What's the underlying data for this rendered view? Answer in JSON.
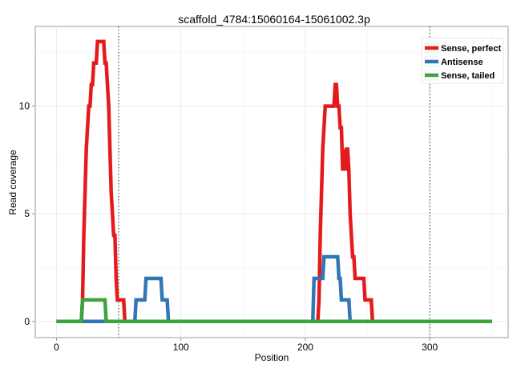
{
  "chart_data": {
    "type": "line",
    "title": "scaffold_4784:15060164-15061002.3p",
    "xlabel": "Position",
    "ylabel": "Read coverage",
    "xlim": [
      -17,
      363
    ],
    "ylim": [
      -0.75,
      13.7
    ],
    "xticks": [
      0,
      100,
      200,
      300
    ],
    "yticks": [
      0,
      5,
      10
    ],
    "grid": true,
    "legend_position": "top-right",
    "vlines": [
      50,
      300
    ],
    "series": [
      {
        "name": "Sense, perfect",
        "color": "#e41a1c",
        "points": [
          [
            0,
            0
          ],
          [
            20,
            0
          ],
          [
            21,
            1
          ],
          [
            22,
            4
          ],
          [
            23,
            6
          ],
          [
            24,
            8
          ],
          [
            25,
            9
          ],
          [
            26,
            10
          ],
          [
            27,
            10
          ],
          [
            28,
            11
          ],
          [
            29,
            11
          ],
          [
            30,
            12
          ],
          [
            31,
            12
          ],
          [
            32,
            12
          ],
          [
            33,
            13
          ],
          [
            35,
            13
          ],
          [
            37,
            13
          ],
          [
            38,
            13
          ],
          [
            39,
            12
          ],
          [
            40,
            12
          ],
          [
            41,
            11
          ],
          [
            42,
            10
          ],
          [
            43,
            8
          ],
          [
            44,
            6
          ],
          [
            45,
            5
          ],
          [
            46,
            4
          ],
          [
            47,
            4
          ],
          [
            48,
            2
          ],
          [
            49,
            1
          ],
          [
            50,
            1
          ],
          [
            51,
            1
          ],
          [
            52,
            1
          ],
          [
            53,
            1
          ],
          [
            54,
            1
          ],
          [
            55,
            0
          ],
          [
            210,
            0
          ],
          [
            211,
            1
          ],
          [
            212,
            4
          ],
          [
            213,
            6
          ],
          [
            214,
            8
          ],
          [
            215,
            9
          ],
          [
            216,
            10
          ],
          [
            217,
            10
          ],
          [
            218,
            10
          ],
          [
            219,
            10
          ],
          [
            220,
            10
          ],
          [
            221,
            10
          ],
          [
            222,
            10
          ],
          [
            223,
            10
          ],
          [
            224,
            11
          ],
          [
            225,
            11
          ],
          [
            226,
            10
          ],
          [
            227,
            10
          ],
          [
            228,
            9
          ],
          [
            229,
            9
          ],
          [
            230,
            7
          ],
          [
            231,
            8
          ],
          [
            232,
            7
          ],
          [
            233,
            8
          ],
          [
            234,
            8
          ],
          [
            235,
            7
          ],
          [
            236,
            5
          ],
          [
            237,
            4
          ],
          [
            238,
            3
          ],
          [
            239,
            3
          ],
          [
            240,
            2
          ],
          [
            241,
            2
          ],
          [
            242,
            2
          ],
          [
            243,
            2
          ],
          [
            244,
            2
          ],
          [
            245,
            2
          ],
          [
            246,
            2
          ],
          [
            247,
            2
          ],
          [
            248,
            1
          ],
          [
            249,
            1
          ],
          [
            250,
            1
          ],
          [
            251,
            1
          ],
          [
            252,
            1
          ],
          [
            253,
            1
          ],
          [
            254,
            0
          ],
          [
            350,
            0
          ]
        ]
      },
      {
        "name": "Antisense",
        "color": "#3176b5",
        "points": [
          [
            0,
            0
          ],
          [
            63,
            0
          ],
          [
            64,
            1
          ],
          [
            65,
            1
          ],
          [
            66,
            1
          ],
          [
            67,
            1
          ],
          [
            68,
            1
          ],
          [
            69,
            1
          ],
          [
            70,
            1
          ],
          [
            71,
            1
          ],
          [
            72,
            2
          ],
          [
            73,
            2
          ],
          [
            74,
            2
          ],
          [
            75,
            2
          ],
          [
            76,
            2
          ],
          [
            77,
            2
          ],
          [
            78,
            2
          ],
          [
            79,
            2
          ],
          [
            80,
            2
          ],
          [
            81,
            2
          ],
          [
            82,
            2
          ],
          [
            83,
            2
          ],
          [
            84,
            2
          ],
          [
            85,
            1
          ],
          [
            86,
            1
          ],
          [
            87,
            1
          ],
          [
            88,
            1
          ],
          [
            89,
            1
          ],
          [
            90,
            0
          ],
          [
            206,
            0
          ],
          [
            207,
            2
          ],
          [
            208,
            2
          ],
          [
            209,
            2
          ],
          [
            210,
            2
          ],
          [
            211,
            2
          ],
          [
            212,
            2
          ],
          [
            213,
            2
          ],
          [
            214,
            2
          ],
          [
            215,
            3
          ],
          [
            216,
            3
          ],
          [
            217,
            3
          ],
          [
            218,
            3
          ],
          [
            219,
            3
          ],
          [
            220,
            3
          ],
          [
            221,
            3
          ],
          [
            222,
            3
          ],
          [
            223,
            3
          ],
          [
            224,
            3
          ],
          [
            225,
            3
          ],
          [
            226,
            3
          ],
          [
            227,
            2
          ],
          [
            228,
            2
          ],
          [
            229,
            1
          ],
          [
            230,
            1
          ],
          [
            231,
            1
          ],
          [
            232,
            1
          ],
          [
            233,
            1
          ],
          [
            234,
            1
          ],
          [
            235,
            1
          ],
          [
            236,
            0
          ],
          [
            350,
            0
          ]
        ]
      },
      {
        "name": "Sense, tailed",
        "color": "#3ea33c",
        "points": [
          [
            0,
            0
          ],
          [
            20,
            0
          ],
          [
            21,
            1
          ],
          [
            25,
            1
          ],
          [
            30,
            1
          ],
          [
            35,
            1
          ],
          [
            38,
            1
          ],
          [
            39,
            1
          ],
          [
            40,
            0
          ],
          [
            350,
            0
          ]
        ]
      }
    ]
  }
}
